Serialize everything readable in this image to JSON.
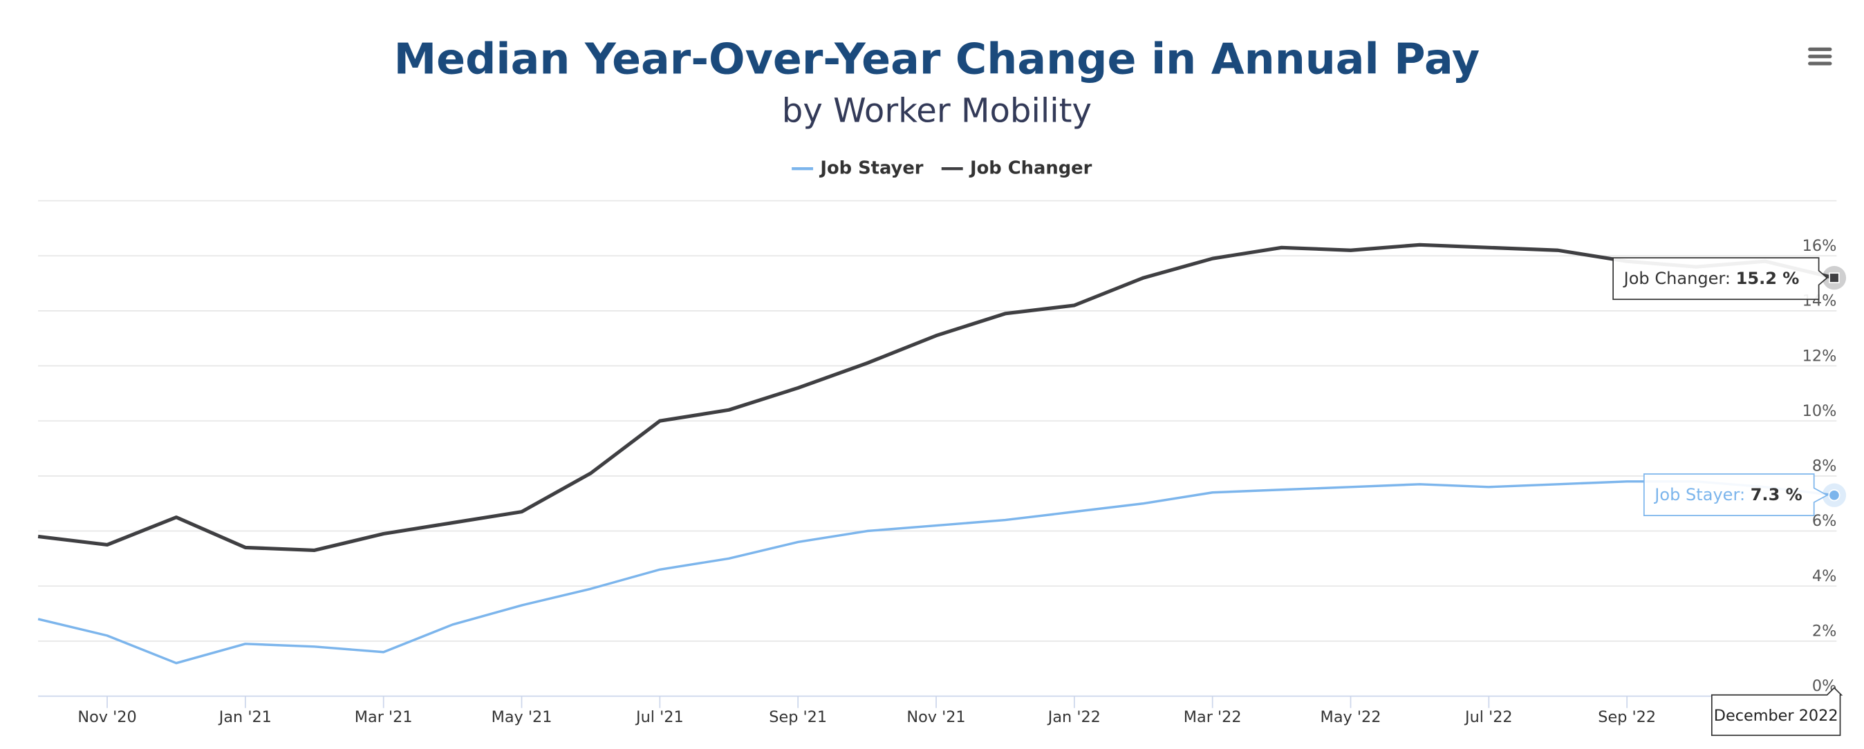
{
  "chart_data": {
    "type": "line",
    "title": "Median Year-Over-Year Change in Annual Pay",
    "subtitle": "by Worker Mobility",
    "categories": [
      null,
      "Nov '20",
      null,
      "Jan '21",
      null,
      "Mar '21",
      null,
      "May '21",
      null,
      "Jul '21",
      null,
      "Sep '21",
      null,
      "Nov '21",
      null,
      "Jan '22",
      null,
      "Mar '22",
      null,
      "May '22",
      null,
      "Jul '22",
      null,
      "Sep '22",
      null,
      null,
      null
    ],
    "series": [
      {
        "name": "Job Stayer",
        "color": "#7cb5ec",
        "values": [
          2.8,
          2.2,
          1.2,
          1.9,
          1.8,
          1.6,
          2.6,
          3.3,
          3.9,
          4.6,
          5.0,
          5.6,
          6.0,
          6.2,
          6.4,
          6.7,
          7.0,
          7.4,
          7.5,
          7.6,
          7.7,
          7.6,
          7.7,
          7.8,
          7.8,
          7.6,
          7.3
        ]
      },
      {
        "name": "Job Changer",
        "color": "#3f3f42",
        "values": [
          5.8,
          5.5,
          6.5,
          5.4,
          5.3,
          5.9,
          6.3,
          6.7,
          8.1,
          10.0,
          10.4,
          11.2,
          12.1,
          13.1,
          13.9,
          14.2,
          15.2,
          15.9,
          16.3,
          16.2,
          16.4,
          16.3,
          16.2,
          15.8,
          15.6,
          15.8,
          15.2
        ]
      }
    ],
    "ylim": [
      0,
      18
    ],
    "yticks": [
      {
        "value": 0,
        "label": "0%"
      },
      {
        "value": 2,
        "label": "2%"
      },
      {
        "value": 4,
        "label": "4%"
      },
      {
        "value": 6,
        "label": "6%"
      },
      {
        "value": 8,
        "label": "8%"
      },
      {
        "value": 10,
        "label": "10%"
      },
      {
        "value": 12,
        "label": "12%"
      },
      {
        "value": 14,
        "label": "14%"
      },
      {
        "value": 16,
        "label": "16%"
      }
    ],
    "grid": true,
    "legend": "top",
    "tooltip": {
      "header": "December 2022",
      "rows": [
        {
          "series": 1,
          "name": "Job Changer: ",
          "value": "15.2 %"
        },
        {
          "series": 0,
          "name": "Job Stayer: ",
          "value": "7.3 %"
        }
      ]
    }
  }
}
